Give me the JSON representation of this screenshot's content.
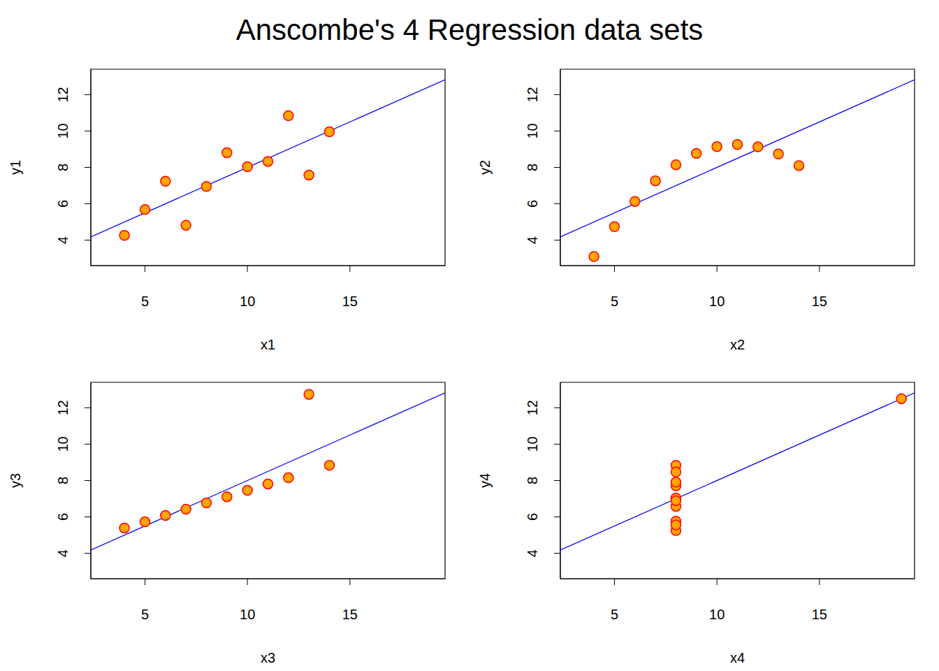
{
  "title": "Anscombe's 4 Regression data sets",
  "chart_data": [
    {
      "type": "scatter",
      "x_label": "x1",
      "y_label": "y1",
      "x": [
        10,
        8,
        13,
        9,
        11,
        14,
        6,
        4,
        12,
        7,
        5
      ],
      "values": [
        8.04,
        6.95,
        7.58,
        8.81,
        8.33,
        9.96,
        7.24,
        4.26,
        10.84,
        4.82,
        5.68
      ],
      "color": "#ffa500",
      "marker": "circle",
      "xlim": [
        2.36,
        19.64
      ],
      "ylim": [
        2.6,
        13.4
      ],
      "xticks": [
        5,
        10,
        15
      ],
      "yticks": [
        4,
        6,
        8,
        10,
        12
      ],
      "fit": {
        "intercept": 3.0,
        "slope": 0.5,
        "color": "#0000ff"
      }
    },
    {
      "type": "scatter",
      "x_label": "x2",
      "y_label": "y2",
      "x": [
        10,
        8,
        13,
        9,
        11,
        14,
        6,
        4,
        12,
        7,
        5
      ],
      "values": [
        9.14,
        8.14,
        8.74,
        8.77,
        9.26,
        8.1,
        6.13,
        3.1,
        9.13,
        7.26,
        4.74
      ],
      "color": "#ffa500",
      "marker": "circle",
      "xlim": [
        2.36,
        19.64
      ],
      "ylim": [
        2.6,
        13.4
      ],
      "xticks": [
        5,
        10,
        15
      ],
      "yticks": [
        4,
        6,
        8,
        10,
        12
      ],
      "fit": {
        "intercept": 3.0,
        "slope": 0.5,
        "color": "#0000ff"
      }
    },
    {
      "type": "scatter",
      "x_label": "x3",
      "y_label": "y3",
      "x": [
        10,
        8,
        13,
        9,
        11,
        14,
        6,
        4,
        12,
        7,
        5
      ],
      "values": [
        7.46,
        6.77,
        12.74,
        7.11,
        7.81,
        8.84,
        6.08,
        5.39,
        8.15,
        6.42,
        5.73
      ],
      "color": "#ffa500",
      "marker": "circle",
      "xlim": [
        2.36,
        19.64
      ],
      "ylim": [
        2.6,
        13.4
      ],
      "xticks": [
        5,
        10,
        15
      ],
      "yticks": [
        4,
        6,
        8,
        10,
        12
      ],
      "fit": {
        "intercept": 3.0,
        "slope": 0.5,
        "color": "#0000ff"
      }
    },
    {
      "type": "scatter",
      "x_label": "x4",
      "y_label": "y4",
      "x": [
        8,
        8,
        8,
        8,
        8,
        8,
        8,
        19,
        8,
        8,
        8
      ],
      "values": [
        6.58,
        5.76,
        7.71,
        8.84,
        8.47,
        7.04,
        5.25,
        12.5,
        5.56,
        7.91,
        6.89
      ],
      "color": "#ffa500",
      "marker": "circle",
      "xlim": [
        2.36,
        19.64
      ],
      "ylim": [
        2.6,
        13.4
      ],
      "xticks": [
        5,
        10,
        15
      ],
      "yticks": [
        4,
        6,
        8,
        10,
        12
      ],
      "fit": {
        "intercept": 3.0,
        "slope": 0.5,
        "color": "#0000ff"
      }
    }
  ]
}
